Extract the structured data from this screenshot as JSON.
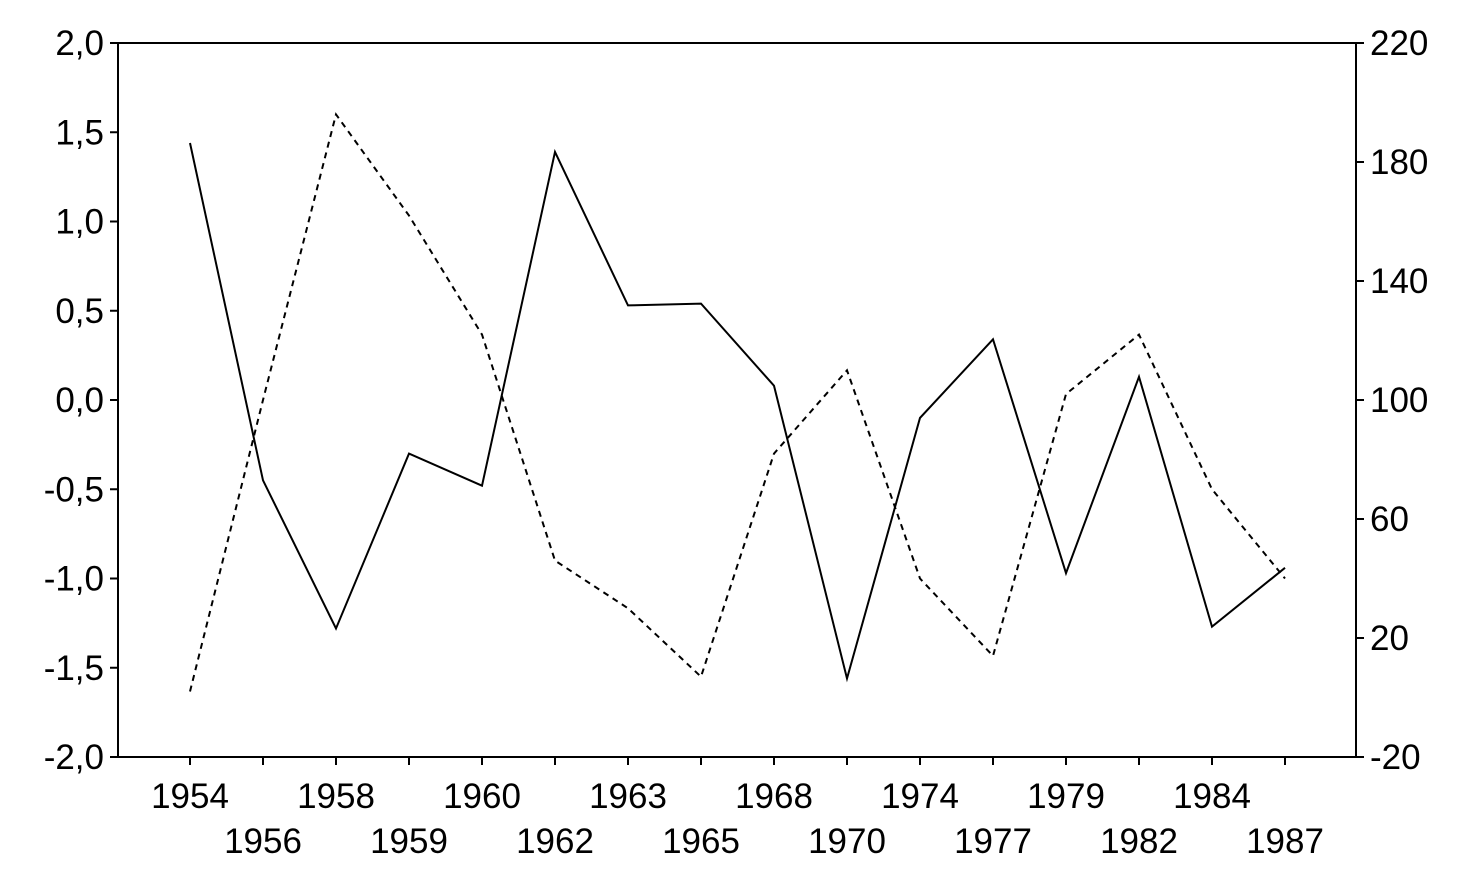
{
  "chart_data": {
    "type": "line",
    "title": "",
    "xlabel": "",
    "ylabel": "",
    "ylabel_right": "",
    "grid": false,
    "legend": "none",
    "categories": [
      "1954",
      "1956",
      "1958",
      "1959",
      "1960",
      "1962",
      "1963",
      "1965",
      "1968",
      "1970",
      "1974",
      "1977",
      "1979",
      "1982",
      "1984",
      "1987"
    ],
    "y_left": {
      "range": [
        -2.0,
        2.0
      ],
      "ticks": [
        -2.0,
        -1.5,
        -1.0,
        -0.5,
        0.0,
        0.5,
        1.0,
        1.5,
        2.0
      ],
      "tick_labels": [
        "-2,0",
        "-1,5",
        "-1,0",
        "-0,5",
        "0,0",
        "0,5",
        "1,0",
        "1,5",
        "2,0"
      ]
    },
    "y_right": {
      "range": [
        -20,
        220
      ],
      "ticks": [
        -20,
        20,
        60,
        100,
        140,
        180,
        220
      ],
      "tick_labels": [
        "-20",
        "20",
        "60",
        "100",
        "140",
        "180",
        "220"
      ]
    },
    "series": [
      {
        "axis": "left",
        "style": "solid",
        "color": "#000000",
        "values": [
          1.44,
          -0.45,
          -1.28,
          -0.3,
          -0.48,
          1.39,
          0.53,
          0.54,
          0.08,
          -1.56,
          -0.1,
          0.34,
          -0.97,
          0.13,
          -1.27,
          -0.94
        ]
      },
      {
        "axis": "right",
        "style": "dashed",
        "color": "#000000",
        "values": [
          2,
          100,
          196,
          162,
          122,
          46,
          30,
          7,
          82,
          110,
          40,
          14,
          102,
          122,
          70,
          40
        ]
      }
    ]
  }
}
